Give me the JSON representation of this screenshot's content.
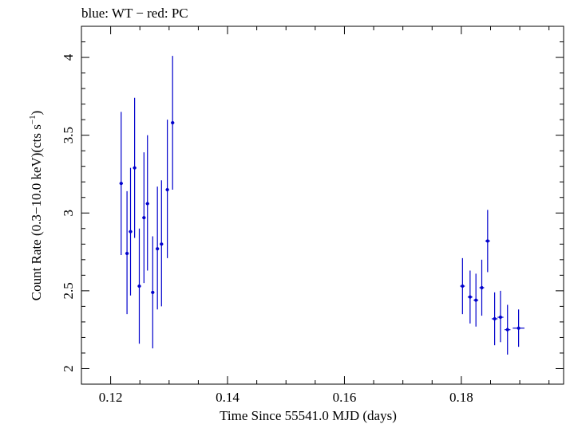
{
  "chart_data": {
    "type": "scatter",
    "title": "blue: WT − red: PC",
    "xlabel": "Time Since 55541.0 MJD (days)",
    "ylabel_main": "Count Rate (0.3−10.0 keV)(cts s",
    "ylabel_sup": "−1",
    "ylabel_close": ")",
    "xlim": [
      0.115,
      0.1975
    ],
    "ylim": [
      1.9,
      4.2
    ],
    "x_ticks": [
      0.12,
      0.14,
      0.16,
      0.18
    ],
    "x_tick_labels": [
      "0.12",
      "0.14",
      "0.16",
      "0.18"
    ],
    "x_minor_step": 0.005,
    "y_ticks": [
      2,
      2.5,
      3,
      3.5,
      4
    ],
    "y_tick_labels": [
      "2",
      "2.5",
      "3",
      "3.5",
      "4"
    ],
    "y_minor_step": 0.1,
    "grid": false,
    "series": [
      {
        "color": "#0000cc",
        "points": [
          {
            "x": 0.1218,
            "xerr": 0.0003,
            "y": 3.19,
            "yerr_lo": 0.46,
            "yerr_hi": 0.46
          },
          {
            "x": 0.1228,
            "xerr": 0.0003,
            "y": 2.74,
            "yerr_lo": 0.39,
            "yerr_hi": 0.4
          },
          {
            "x": 0.1234,
            "xerr": 0.0003,
            "y": 2.88,
            "yerr_lo": 0.41,
            "yerr_hi": 0.41
          },
          {
            "x": 0.1241,
            "xerr": 0.0003,
            "y": 3.29,
            "yerr_lo": 0.45,
            "yerr_hi": 0.45
          },
          {
            "x": 0.1249,
            "xerr": 0.0003,
            "y": 2.53,
            "yerr_lo": 0.37,
            "yerr_hi": 0.37
          },
          {
            "x": 0.1257,
            "xerr": 0.0003,
            "y": 2.97,
            "yerr_lo": 0.42,
            "yerr_hi": 0.42
          },
          {
            "x": 0.1263,
            "xerr": 0.0003,
            "y": 3.06,
            "yerr_lo": 0.43,
            "yerr_hi": 0.44
          },
          {
            "x": 0.1272,
            "xerr": 0.0003,
            "y": 2.49,
            "yerr_lo": 0.36,
            "yerr_hi": 0.36
          },
          {
            "x": 0.128,
            "xerr": 0.0003,
            "y": 2.77,
            "yerr_lo": 0.39,
            "yerr_hi": 0.4
          },
          {
            "x": 0.1287,
            "xerr": 0.0003,
            "y": 2.8,
            "yerr_lo": 0.4,
            "yerr_hi": 0.41
          },
          {
            "x": 0.1297,
            "xerr": 0.0003,
            "y": 3.15,
            "yerr_lo": 0.44,
            "yerr_hi": 0.45
          },
          {
            "x": 0.1306,
            "xerr": 0.0003,
            "y": 3.58,
            "yerr_lo": 0.43,
            "yerr_hi": 0.43
          },
          {
            "x": 0.1802,
            "xerr": 0.0004,
            "y": 2.53,
            "yerr_lo": 0.18,
            "yerr_hi": 0.18
          },
          {
            "x": 0.1815,
            "xerr": 0.0004,
            "y": 2.46,
            "yerr_lo": 0.17,
            "yerr_hi": 0.17
          },
          {
            "x": 0.1825,
            "xerr": 0.0004,
            "y": 2.44,
            "yerr_lo": 0.17,
            "yerr_hi": 0.17
          },
          {
            "x": 0.1835,
            "xerr": 0.0004,
            "y": 2.52,
            "yerr_lo": 0.18,
            "yerr_hi": 0.18
          },
          {
            "x": 0.1845,
            "xerr": 0.0004,
            "y": 2.82,
            "yerr_lo": 0.2,
            "yerr_hi": 0.2
          },
          {
            "x": 0.1857,
            "xerr": 0.0005,
            "y": 2.32,
            "yerr_lo": 0.17,
            "yerr_hi": 0.17
          },
          {
            "x": 0.1867,
            "xerr": 0.0005,
            "y": 2.33,
            "yerr_lo": 0.16,
            "yerr_hi": 0.17
          },
          {
            "x": 0.1879,
            "xerr": 0.0005,
            "y": 2.25,
            "yerr_lo": 0.16,
            "yerr_hi": 0.16
          },
          {
            "x": 0.1898,
            "xerr": 0.001,
            "y": 2.26,
            "yerr_lo": 0.12,
            "yerr_hi": 0.12
          }
        ]
      }
    ]
  }
}
